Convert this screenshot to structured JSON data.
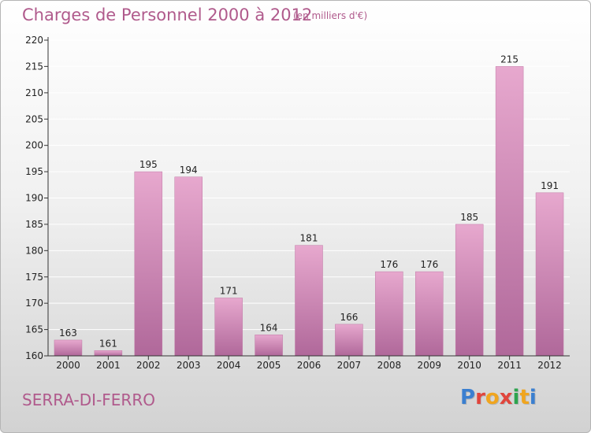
{
  "header": {
    "title": "Charges de Personnel 2000 à 2012",
    "unit": "(en milliers d'€)"
  },
  "footer": {
    "commune": "SERRA-DI-FERRO",
    "logo": "Proxiti"
  },
  "colors": {
    "bar_top": "#e7a8ce",
    "bar_bottom": "#b0689a",
    "title": "#b05a8c",
    "axis": "#333333",
    "grid": "#ffffff"
  },
  "chart_data": {
    "type": "bar",
    "title": "Charges de Personnel 2000 à 2012",
    "subtitle": "(en milliers d'€)",
    "xlabel": "",
    "ylabel": "",
    "categories": [
      "2000",
      "2001",
      "2002",
      "2003",
      "2004",
      "2005",
      "2006",
      "2007",
      "2008",
      "2009",
      "2010",
      "2011",
      "2012"
    ],
    "values": [
      163,
      161,
      195,
      194,
      171,
      164,
      181,
      166,
      176,
      176,
      185,
      215,
      191
    ],
    "ylim": [
      160,
      220
    ],
    "yticks": [
      160,
      165,
      170,
      175,
      180,
      185,
      190,
      195,
      200,
      205,
      210,
      215,
      220
    ],
    "grid": true,
    "legend": "none"
  }
}
